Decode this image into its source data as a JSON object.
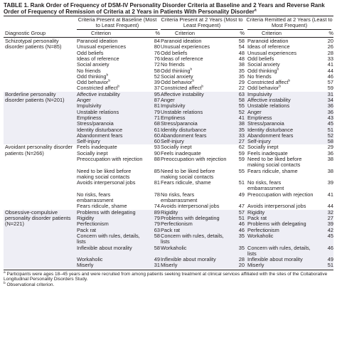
{
  "title": "TABLE 1. Rank Order of Frequency of DSM-IV Personality Disorder Criteria at Baseline and 2 Years and Reverse Rank Order of Frequency of Remission of Criteria at 2 Years in Patients With Personality Disorder",
  "title_sup": "a",
  "columns": {
    "group_header": "Diagnostic Group",
    "panels": [
      {
        "title": "Criteria Present at Baseline (Most to Least Frequent)",
        "criterion": "Criterion",
        "pct": "%"
      },
      {
        "title": "Criteria Present at 2 Years (Most to Least Frequent)",
        "criterion": "Criterion",
        "pct": "%"
      },
      {
        "title": "Criteria Remitted at 2 Years (Least to Most Frequent)",
        "criterion": "Criterion",
        "pct": "%"
      }
    ]
  },
  "groups": [
    {
      "name": "Schizotypal personality disorder patients (N=85)",
      "rows": [
        [
          [
            "Paranoid ideation",
            "",
            "84"
          ],
          [
            "Paranoid ideation",
            "",
            "58"
          ],
          [
            "Paranoid ideation",
            "",
            "20"
          ]
        ],
        [
          [
            "Unusual experiences",
            "",
            "80"
          ],
          [
            "Unusual experiences",
            "",
            "54"
          ],
          [
            "Ideas of reference",
            "",
            "26"
          ]
        ],
        [
          [
            "Odd beliefs",
            "",
            "76"
          ],
          [
            "Odd beliefs",
            "",
            "48"
          ],
          [
            "Unusual experiences",
            "",
            "28"
          ]
        ],
        [
          [
            "Ideas of reference",
            "",
            "76"
          ],
          [
            "Ideas of reference",
            "",
            "48"
          ],
          [
            "Odd beliefs",
            "",
            "33"
          ]
        ],
        [
          [
            "Social anxiety",
            "",
            "72"
          ],
          [
            "No friends",
            "",
            "38"
          ],
          [
            "Social anxiety",
            "",
            "41"
          ]
        ],
        [
          [
            "No friends",
            "",
            "58"
          ],
          [
            "Odd thinking",
            "b",
            "35"
          ],
          [
            "Odd thinking",
            "b",
            "44"
          ]
        ],
        [
          [
            "Odd thinking",
            "b",
            "52"
          ],
          [
            "Social anxiety",
            "",
            "35"
          ],
          [
            "No friends",
            "",
            "46"
          ]
        ],
        [
          [
            "Odd behavior",
            "b",
            "39"
          ],
          [
            "Odd behavior",
            "b",
            "29"
          ],
          [
            "Constricted affect",
            "b",
            "57"
          ]
        ],
        [
          [
            "Constricted affect",
            "b",
            "37"
          ],
          [
            "Constricted affect",
            "b",
            "22"
          ],
          [
            "Odd behavior",
            "b",
            "59"
          ]
        ]
      ]
    },
    {
      "name": "Borderline personality disorder patients (N=201)",
      "rows": [
        [
          [
            "Affective instability",
            "",
            "95"
          ],
          [
            "Affective instability",
            "",
            "63"
          ],
          [
            "Impulsivity",
            "",
            "31"
          ]
        ],
        [
          [
            "Anger",
            "",
            "87"
          ],
          [
            "Anger",
            "",
            "58"
          ],
          [
            "Affective instability",
            "",
            "34"
          ]
        ],
        [
          [
            "Impulsivity",
            "",
            "81"
          ],
          [
            "Impulsivity",
            "",
            "55"
          ],
          [
            "Unstable relations",
            "",
            "36"
          ]
        ],
        [
          [
            "Unstable relations",
            "",
            "79"
          ],
          [
            "Unstable relations",
            "",
            "52"
          ],
          [
            "Anger",
            "",
            "36"
          ]
        ],
        [
          [
            "Emptiness",
            "",
            "71"
          ],
          [
            "Emptiness",
            "",
            "41"
          ],
          [
            "Emptiness",
            "",
            "43"
          ]
        ],
        [
          [
            "Stress/paranoia",
            "",
            "68"
          ],
          [
            "Stress/paranoia",
            "",
            "38"
          ],
          [
            "Stress/paranoia",
            "",
            "45"
          ]
        ],
        [
          [
            "Identity disturbance",
            "",
            "61"
          ],
          [
            "Identity disturbance",
            "",
            "35"
          ],
          [
            "Identity disturbance",
            "",
            "51"
          ]
        ],
        [
          [
            "Abandonment fears",
            "",
            "60"
          ],
          [
            "Abandonment fears",
            "",
            "33"
          ],
          [
            "Abandonment fears",
            "",
            "52"
          ]
        ],
        [
          [
            "Self-injury",
            "",
            "60"
          ],
          [
            "Self-injury",
            "",
            "27"
          ],
          [
            "Self-injury",
            "",
            "58"
          ]
        ]
      ]
    },
    {
      "name": "Avoidant personality disorder patients (N=266)",
      "rows": [
        [
          [
            "Feels inadequate",
            "",
            "93"
          ],
          [
            "Socially inept",
            "",
            "62"
          ],
          [
            "Socially inept",
            "",
            "29"
          ]
        ],
        [
          [
            "Socially inept",
            "",
            "90"
          ],
          [
            "Feels inadequate",
            "",
            "59"
          ],
          [
            "Feels inadequate",
            "",
            "36"
          ]
        ],
        [
          [
            "Preoccupation with rejection",
            "",
            "88"
          ],
          [
            "Preoccupation with rejection",
            "",
            "59"
          ],
          [
            "Need to be liked before making social contacts",
            "",
            "38"
          ]
        ],
        [
          [
            "Need to be liked before making social contacts",
            "",
            "85"
          ],
          [
            "Need to be liked before making social contacts",
            "",
            "55"
          ],
          [
            "Fears ridicule, shame",
            "",
            "38"
          ]
        ],
        [
          [
            "Avoids interpersonal jobs",
            "",
            "81"
          ],
          [
            "Fears ridicule, shame",
            "",
            "51"
          ],
          [
            "No risks, fears embarrassment",
            "",
            "39"
          ]
        ],
        [
          [
            "No risks, fears embarrassment",
            "",
            "78"
          ],
          [
            "No risks, fears embarrassment",
            "",
            "49"
          ],
          [
            "Preoccupation with rejection",
            "",
            "41"
          ]
        ],
        [
          [
            "Fears ridicule, shame",
            "",
            "74"
          ],
          [
            "Avoids interpersonal jobs",
            "",
            "47"
          ],
          [
            "Avoids interpersonal jobs",
            "",
            "44"
          ]
        ]
      ]
    },
    {
      "name": "Obsessive-compulsive personality disorder patients (N=221)",
      "rows": [
        [
          [
            "Problems with delegating",
            "",
            "89"
          ],
          [
            "Rigidity",
            "",
            "57"
          ],
          [
            "Rigidity",
            "",
            "32"
          ]
        ],
        [
          [
            "Rigidity",
            "",
            "79"
          ],
          [
            "Problems with delegating",
            "",
            "51"
          ],
          [
            "Pack rat",
            "",
            "27"
          ]
        ],
        [
          [
            "Perfectionism",
            "",
            "79"
          ],
          [
            "Perfectionism",
            "",
            "46"
          ],
          [
            "Problems with delegating",
            "",
            "39"
          ]
        ],
        [
          [
            "Pack rat",
            "",
            "63"
          ],
          [
            "Pack rat",
            "",
            "46"
          ],
          [
            "Perfectionism",
            "",
            "42"
          ]
        ],
        [
          [
            "Concern with rules, details, lists",
            "",
            "58"
          ],
          [
            "Concern with rules, details, lists",
            "",
            "35"
          ],
          [
            "Workaholic",
            "",
            "45"
          ]
        ],
        [
          [
            "Inflexible about morality",
            "",
            "58"
          ],
          [
            "Workaholic",
            "",
            "35"
          ],
          [
            "Concern with rules, details, lists",
            "",
            "46"
          ]
        ],
        [
          [
            "Workaholic",
            "",
            "49"
          ],
          [
            "Inflexible about morality",
            "",
            "28"
          ],
          [
            "Inflexible about morality",
            "",
            "49"
          ]
        ],
        [
          [
            "Miserly",
            "",
            "31"
          ],
          [
            "Miserly",
            "",
            "20"
          ],
          [
            "Miserly",
            "",
            "51"
          ]
        ]
      ]
    }
  ],
  "footnotes": [
    {
      "mark": "a",
      "text": "Participants were ages 18–45 years and were recruited from among patients seeking treatment at clinical services affiliated with the sites of the Collaborative Longitudinal Personality Disorders Study."
    },
    {
      "mark": "b",
      "text": "Observational criterion."
    }
  ]
}
